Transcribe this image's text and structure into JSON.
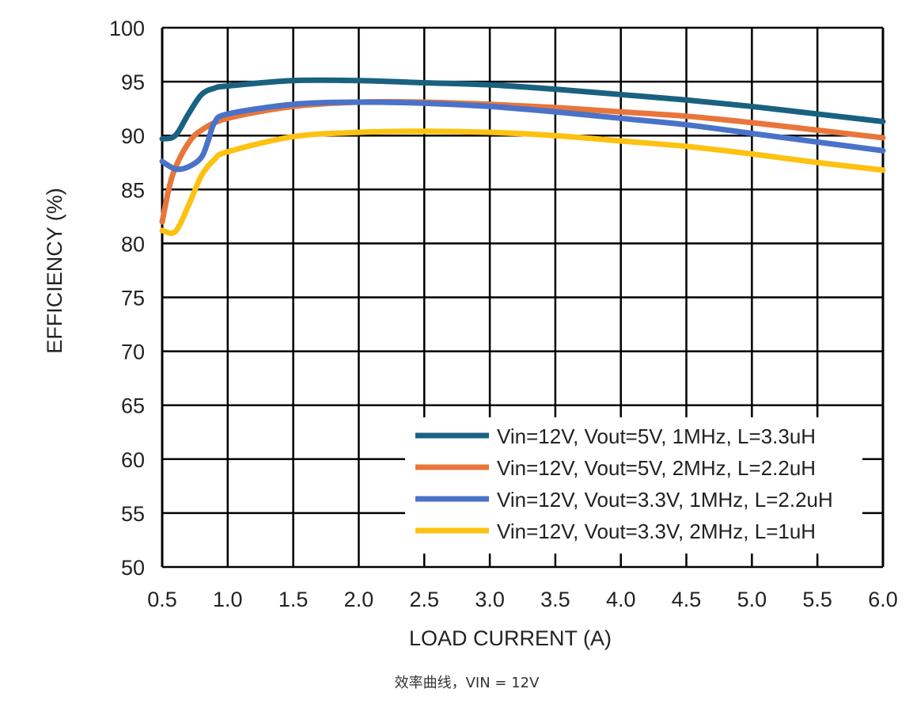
{
  "chart_data": {
    "type": "line",
    "title": "",
    "xlabel": "LOAD CURRENT (A)",
    "ylabel": "EFFICIENCY (%)",
    "xlim": [
      0.5,
      6.0
    ],
    "ylim": [
      50,
      100
    ],
    "xticks": [
      "0.5",
      "1.0",
      "1.5",
      "2.0",
      "2.5",
      "3.0",
      "3.5",
      "4.0",
      "4.5",
      "5.0",
      "5.5",
      "6.0"
    ],
    "yticks": [
      "100",
      "95",
      "90",
      "85",
      "80",
      "75",
      "70",
      "65",
      "60",
      "55",
      "50"
    ],
    "grid": true,
    "legend_position": "bottom-right",
    "series": [
      {
        "name": "Vin=12V, Vout=5V, 1MHz, L=3.3uH",
        "color": "#1a6180",
        "x": [
          0.5,
          0.6,
          0.7,
          0.8,
          0.9,
          1.0,
          1.5,
          2.0,
          2.5,
          3.0,
          3.5,
          4.0,
          4.5,
          5.0,
          5.5,
          6.0
        ],
        "y": [
          89.7,
          90.0,
          92.0,
          93.8,
          94.4,
          94.6,
          95.1,
          95.1,
          94.9,
          94.7,
          94.3,
          93.8,
          93.3,
          92.7,
          92.0,
          91.3
        ]
      },
      {
        "name": "Vin=12V, Vout=5V, 2MHz, L=2.2uH",
        "color": "#e8763a",
        "x": [
          0.5,
          0.55,
          0.6,
          0.7,
          0.8,
          1.0,
          1.5,
          2.0,
          2.5,
          3.0,
          3.5,
          4.0,
          4.5,
          5.0,
          5.5,
          6.0
        ],
        "y": [
          82.0,
          85.0,
          87.0,
          89.3,
          90.5,
          91.6,
          92.7,
          93.1,
          93.1,
          92.9,
          92.6,
          92.2,
          91.8,
          91.2,
          90.5,
          89.8
        ]
      },
      {
        "name": "Vin=12V, Vout=3.3V, 1MHz, L=2.2uH",
        "color": "#4a72c8",
        "x": [
          0.5,
          0.6,
          0.7,
          0.8,
          0.85,
          0.9,
          1.0,
          1.5,
          2.0,
          2.5,
          3.0,
          3.5,
          4.0,
          4.5,
          5.0,
          5.5,
          6.0
        ],
        "y": [
          87.6,
          86.9,
          87.1,
          88.0,
          89.5,
          91.2,
          92.0,
          92.9,
          93.1,
          93.0,
          92.7,
          92.2,
          91.6,
          91.0,
          90.2,
          89.4,
          88.6
        ]
      },
      {
        "name": "Vin=12V, Vout=3.3V, 2MHz, L=1uH",
        "color": "#fdc211",
        "x": [
          0.5,
          0.6,
          0.7,
          0.8,
          0.9,
          1.0,
          1.5,
          2.0,
          2.5,
          3.0,
          3.5,
          4.0,
          4.5,
          5.0,
          5.5,
          6.0
        ],
        "y": [
          81.2,
          81.1,
          83.5,
          86.3,
          87.8,
          88.5,
          89.9,
          90.3,
          90.4,
          90.3,
          90.0,
          89.5,
          89.0,
          88.3,
          87.5,
          86.8
        ]
      }
    ]
  },
  "caption": "效率曲线，VIN = 12V"
}
